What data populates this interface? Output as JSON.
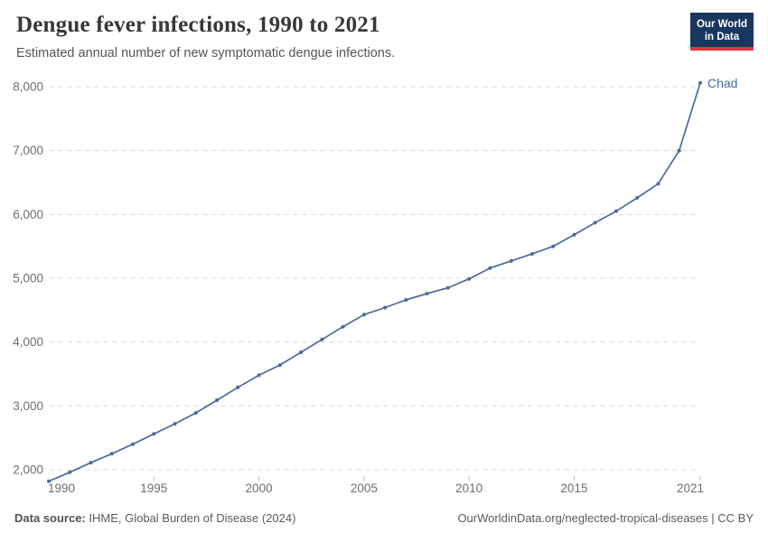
{
  "header": {
    "logo": {
      "line1": "Our World",
      "line2": "in Data",
      "bg_color": "#18375f",
      "accent_color": "#e0373c"
    }
  },
  "chart_data": {
    "type": "line",
    "title": "Dengue fever infections, 1990 to 2021",
    "subtitle": "Estimated annual number of new symptomatic dengue infections.",
    "x": [
      1990,
      1991,
      1992,
      1993,
      1994,
      1995,
      1996,
      1997,
      1998,
      1999,
      2000,
      2001,
      2002,
      2003,
      2004,
      2005,
      2006,
      2007,
      2008,
      2009,
      2010,
      2011,
      2012,
      2013,
      2014,
      2015,
      2016,
      2017,
      2018,
      2019,
      2020,
      2021
    ],
    "series": [
      {
        "name": "Chad",
        "color": "#4C6A9C",
        "values": [
          1820,
          1960,
          2110,
          2250,
          2400,
          2560,
          2720,
          2890,
          3090,
          3290,
          3480,
          3640,
          3840,
          4040,
          4240,
          4430,
          4540,
          4660,
          4760,
          4850,
          4990,
          5160,
          5270,
          5380,
          5500,
          5680,
          5870,
          6050,
          6260,
          6480,
          7000,
          8060
        ]
      }
    ],
    "xlim": [
      1990,
      2021
    ],
    "ylim": [
      1800,
      8100
    ],
    "xticks": [
      1990,
      1995,
      2000,
      2005,
      2010,
      2015,
      2021
    ],
    "yticks": [
      2000,
      3000,
      4000,
      5000,
      6000,
      7000,
      8000
    ],
    "grid": "horizontal-dashed",
    "grid_color": "#dcdcdc",
    "tick_color": "#b8b8b8",
    "label_color": "#6e6e6e",
    "legend_position": "end-of-line",
    "entity_label": "Chad"
  },
  "footer": {
    "source_label": "Data source:",
    "source_value": " IHME, Global Burden of Disease (2024)",
    "credit": "OurWorldinData.org/neglected-tropical-diseases | CC BY"
  }
}
